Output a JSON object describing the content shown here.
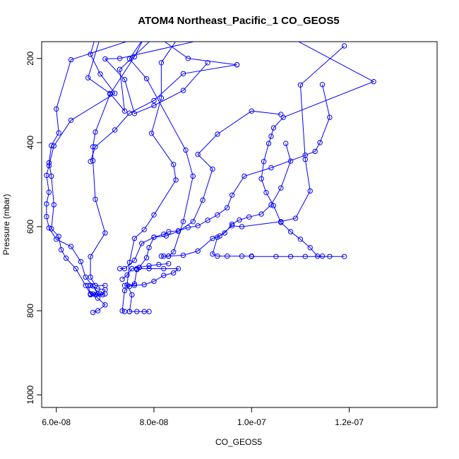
{
  "chart_data": {
    "type": "line",
    "title": "ATOM4 Northeast_Pacific_1 CO_GEOS5",
    "xlabel": "CO_GEOS5",
    "ylabel": "Pressure (mbar)",
    "xlim": [
      5.7e-08,
      1.38e-07
    ],
    "ylim": [
      1030,
      160
    ],
    "y_reversed": true,
    "grid": false,
    "color": "#0000ff",
    "x_ticks": [
      {
        "value": 6e-08,
        "label": "6.0e-08"
      },
      {
        "value": 8e-08,
        "label": "8.0e-08"
      },
      {
        "value": 1e-07,
        "label": "1.0e-07"
      },
      {
        "value": 1.2e-07,
        "label": "1.2e-07"
      }
    ],
    "y_ticks": [
      {
        "value": 200,
        "label": "200"
      },
      {
        "value": 400,
        "label": "400"
      },
      {
        "value": 600,
        "label": "600"
      },
      {
        "value": 800,
        "label": "800"
      },
      {
        "value": 1000,
        "label": "1000"
      }
    ],
    "series": [
      {
        "points": [
          [
            6.8e-08,
            150
          ],
          [
            6.7e-08,
            190
          ],
          [
            6.9e-08,
            237
          ],
          [
            7.2e-08,
            283
          ],
          [
            6.3e-08,
            347
          ],
          [
            5.95e-08,
            408
          ],
          [
            5.85e-08,
            455
          ],
          [
            5.8e-08,
            478
          ],
          [
            5.85e-08,
            518
          ],
          [
            5.8e-08,
            546
          ],
          [
            5.8e-08,
            576
          ],
          [
            5.85e-08,
            603
          ],
          [
            6e-08,
            630
          ],
          [
            6.3e-08,
            647
          ],
          [
            6.5e-08,
            683
          ],
          [
            6.6e-08,
            720
          ],
          [
            6.75e-08,
            741
          ],
          [
            6.85e-08,
            760
          ],
          [
            7e-08,
            760
          ]
        ]
      },
      {
        "points": [
          [
            7.8e-08,
            150
          ],
          [
            7.6e-08,
            196
          ],
          [
            7.1e-08,
            285
          ],
          [
            6.8e-08,
            375
          ],
          [
            6.75e-08,
            410
          ],
          [
            6.75e-08,
            443
          ],
          [
            6.8e-08,
            535
          ],
          [
            7e-08,
            615
          ],
          [
            6.7e-08,
            671
          ],
          [
            6.7e-08,
            720
          ],
          [
            6.8e-08,
            740
          ],
          [
            7e-08,
            740
          ]
        ]
      },
      {
        "points": [
          [
            9.2e-08,
            150
          ],
          [
            7.3e-08,
            200
          ],
          [
            7e-08,
            201
          ],
          [
            7.4e-08,
            250
          ],
          [
            7.6e-08,
            331
          ],
          [
            8e-08,
            312
          ],
          [
            8.6e-08,
            276
          ],
          [
            9.1e-08,
            210
          ]
        ]
      },
      {
        "points": [
          [
            8.5e-08,
            150
          ],
          [
            8.15e-08,
            210
          ],
          [
            8.15e-08,
            294
          ],
          [
            7.95e-08,
            378
          ],
          [
            8.4e-08,
            452
          ],
          [
            8.45e-08,
            489
          ],
          [
            8e-08,
            572
          ],
          [
            7.8e-08,
            607
          ],
          [
            7.6e-08,
            628
          ],
          [
            7.5e-08,
            685
          ],
          [
            7.45e-08,
            739
          ],
          [
            7.55e-08,
            762
          ],
          [
            7.5e-08,
            802
          ]
        ]
      },
      {
        "points": [
          [
            6.9e-08,
            150
          ],
          [
            6.65e-08,
            246
          ],
          [
            7.1e-08,
            283
          ],
          [
            7.4e-08,
            325
          ],
          [
            7.3e-08,
            226
          ],
          [
            8e-08,
            150
          ]
        ]
      },
      {
        "points": [
          [
            8.1e-08,
            150
          ],
          [
            8.7e-08,
            200
          ],
          [
            9.7e-08,
            215
          ]
        ]
      },
      {
        "points": [
          [
            7.8e-08,
            150
          ],
          [
            7.5e-08,
            201
          ],
          [
            7.85e-08,
            248
          ],
          [
            8.65e-08,
            418
          ],
          [
            8.8e-08,
            480
          ],
          [
            8.6e-08,
            588
          ],
          [
            8.4e-08,
            660
          ],
          [
            8.3e-08,
            670
          ],
          [
            8.2e-08,
            670
          ]
        ]
      },
      {
        "points": [
          [
            7.7e-08,
            150
          ],
          [
            6.3e-08,
            203
          ],
          [
            6e-08,
            320
          ],
          [
            6.05e-08,
            377
          ],
          [
            5.9e-08,
            407
          ],
          [
            5.85e-08,
            448
          ],
          [
            5.9e-08,
            480
          ],
          [
            5.95e-08,
            548
          ],
          [
            5.9e-08,
            605
          ],
          [
            6.05e-08,
            623
          ],
          [
            6.1e-08,
            655
          ],
          [
            6.2e-08,
            675
          ],
          [
            6.4e-08,
            700
          ],
          [
            6.6e-08,
            740
          ],
          [
            6.7e-08,
            760
          ],
          [
            6.9e-08,
            760
          ]
        ]
      },
      {
        "points": [
          [
            1.19e-07,
            170
          ],
          [
            1.1e-07,
            263
          ],
          [
            1.11e-07,
            440
          ],
          [
            1.12e-07,
            515
          ],
          [
            1.09e-07,
            580
          ],
          [
            1.06e-07,
            588
          ],
          [
            9.8e-08,
            600
          ],
          [
            9.6e-08,
            598
          ],
          [
            9.35e-08,
            622
          ],
          [
            9.2e-08,
            628
          ],
          [
            8.9e-08,
            658
          ],
          [
            8.6e-08,
            668
          ],
          [
            8.3e-08,
            670
          ],
          [
            8.15e-08,
            670
          ]
        ]
      },
      {
        "points": [
          [
            1.08e-07,
            150
          ],
          [
            1.25e-07,
            255
          ],
          [
            1.065e-07,
            340
          ],
          [
            1.045e-07,
            365
          ],
          [
            1.04e-07,
            385
          ],
          [
            1.035e-07,
            402
          ],
          [
            1.025e-07,
            445
          ],
          [
            1.02e-07,
            486
          ],
          [
            1.03e-07,
            519
          ],
          [
            1.045e-07,
            550
          ],
          [
            1.06e-07,
            590
          ],
          [
            1.08e-07,
            612
          ],
          [
            1.1e-07,
            630
          ],
          [
            1.12e-07,
            650
          ],
          [
            1.135e-07,
            670
          ],
          [
            1.145e-07,
            670
          ]
        ]
      },
      {
        "points": [
          [
            1.145e-07,
            262
          ],
          [
            1.16e-07,
            340
          ],
          [
            1.14e-07,
            400
          ],
          [
            1.13e-07,
            421
          ],
          [
            1.11e-07,
            430
          ],
          [
            1.04e-07,
            460
          ],
          [
            9.85e-08,
            480
          ],
          [
            9.6e-08,
            525
          ],
          [
            9.5e-08,
            555
          ],
          [
            9.3e-08,
            572
          ],
          [
            9.1e-08,
            585
          ],
          [
            8.9e-08,
            598
          ],
          [
            8.7e-08,
            602
          ],
          [
            8.5e-08,
            610
          ],
          [
            8.3e-08,
            612
          ],
          [
            8.2e-08,
            618
          ],
          [
            8e-08,
            625
          ],
          [
            7.9e-08,
            650
          ],
          [
            7.85e-08,
            674
          ],
          [
            7.7e-08,
            697
          ],
          [
            7.65e-08,
            702
          ],
          [
            7.6e-08,
            736
          ],
          [
            7.5e-08,
            742
          ],
          [
            7.4e-08,
            752
          ],
          [
            7.35e-08,
            800
          ],
          [
            7.4e-08,
            802
          ]
        ]
      },
      {
        "points": [
          [
            1.06e-07,
            333
          ],
          [
            1e-07,
            325
          ],
          [
            9.3e-08,
            380
          ],
          [
            8.9e-08,
            428
          ],
          [
            9.2e-08,
            463
          ],
          [
            9e-08,
            537
          ],
          [
            8.8e-08,
            588
          ],
          [
            8.5e-08,
            611
          ],
          [
            8.25e-08,
            622
          ],
          [
            8e-08,
            625
          ],
          [
            7.75e-08,
            640
          ],
          [
            7.6e-08,
            680
          ],
          [
            7.4e-08,
            700
          ],
          [
            7.3e-08,
            700
          ]
        ]
      },
      {
        "points": [
          [
            1.07e-07,
            402
          ],
          [
            1.08e-07,
            444
          ],
          [
            1.06e-07,
            508
          ],
          [
            1.04e-07,
            548
          ],
          [
            1.02e-07,
            570
          ],
          [
            9.95e-08,
            577
          ],
          [
            9.75e-08,
            584
          ],
          [
            9.6e-08,
            594
          ],
          [
            9.45e-08,
            615
          ],
          [
            9.3e-08,
            625
          ],
          [
            9.2e-08,
            665
          ],
          [
            9.3e-08,
            670
          ],
          [
            9.5e-08,
            670
          ],
          [
            9.8e-08,
            670
          ],
          [
            1e-07,
            670
          ]
        ]
      },
      {
        "points": [
          [
            6.65e-08,
            740
          ],
          [
            6.7e-08,
            760
          ],
          [
            6.75e-08,
            760
          ],
          [
            6.85e-08,
            770
          ],
          [
            7e-08,
            786
          ],
          [
            6.85e-08,
            800
          ],
          [
            6.75e-08,
            804
          ]
        ]
      },
      {
        "points": [
          [
            9.7e-08,
            215
          ],
          [
            8.6e-08,
            236
          ],
          [
            8e-08,
            300
          ],
          [
            7.5e-08,
            330
          ],
          [
            7.2e-08,
            370
          ],
          [
            6.8e-08,
            410
          ],
          [
            6.7e-08,
            445
          ]
        ]
      },
      {
        "points": [
          [
            1e-07,
            671
          ],
          [
            1.05e-07,
            671
          ],
          [
            1.08e-07,
            671
          ],
          [
            1.11e-07,
            671
          ],
          [
            1.16e-07,
            671
          ],
          [
            1.19e-07,
            671
          ]
        ]
      },
      {
        "points": [
          [
            7.65e-08,
            700
          ],
          [
            7.9e-08,
            700
          ],
          [
            8.2e-08,
            700
          ],
          [
            8.5e-08,
            700
          ],
          [
            8.4e-08,
            710
          ],
          [
            8.2e-08,
            716
          ],
          [
            8e-08,
            730
          ],
          [
            7.8e-08,
            738
          ],
          [
            7.6e-08,
            740
          ],
          [
            7.4e-08,
            740
          ]
        ]
      },
      {
        "points": [
          [
            6.7e-08,
            740
          ],
          [
            6.85e-08,
            748
          ],
          [
            7e-08,
            750
          ],
          [
            6.95e-08,
            762
          ],
          [
            6.8e-08,
            762
          ],
          [
            6.7e-08,
            762
          ]
        ]
      },
      {
        "points": [
          [
            7.5e-08,
            802
          ],
          [
            7.65e-08,
            802
          ],
          [
            7.8e-08,
            802
          ],
          [
            7.9e-08,
            802
          ]
        ]
      },
      {
        "points": [
          [
            7.35e-08,
            725
          ],
          [
            7.45e-08,
            715
          ],
          [
            7.55e-08,
            700
          ],
          [
            7.7e-08,
            697
          ],
          [
            7.9e-08,
            693
          ],
          [
            8.1e-08,
            690
          ],
          [
            8.3e-08,
            688
          ]
        ]
      }
    ]
  }
}
